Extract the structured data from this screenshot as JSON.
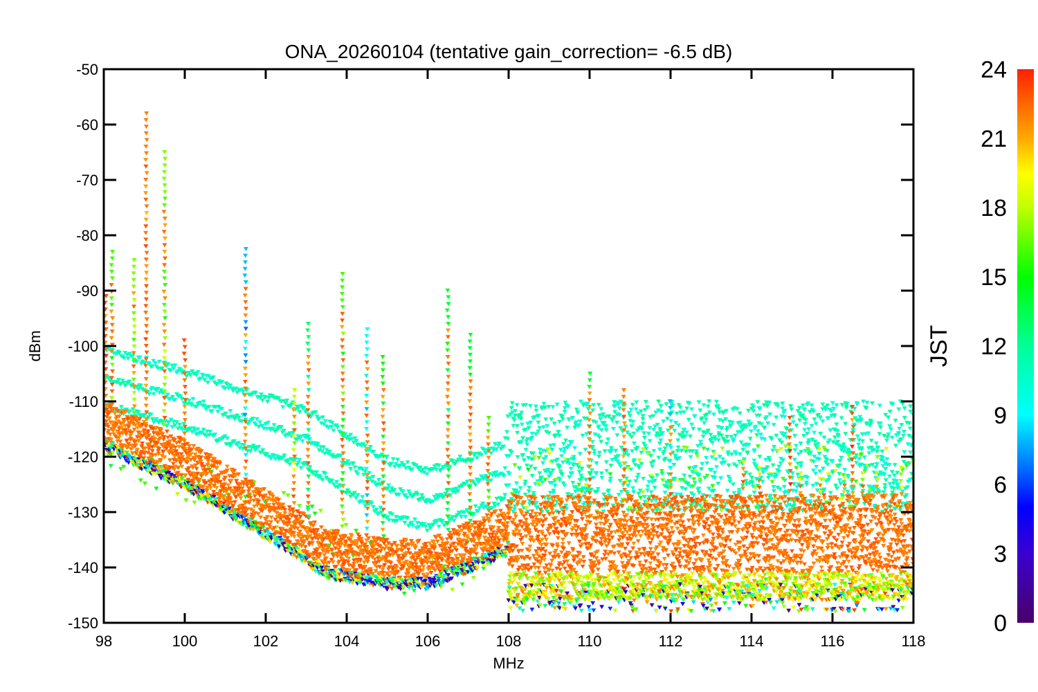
{
  "chart_data": {
    "type": "scatter",
    "title": "ONA_20260104 (tentative gain_correction= -6.5 dB)",
    "xlabel": "MHz",
    "ylabel": "dBm",
    "xlim": [
      98,
      118
    ],
    "ylim": [
      -150,
      -50
    ],
    "xticks": [
      "98",
      "100",
      "102",
      "104",
      "106",
      "108",
      "110",
      "112",
      "114",
      "116",
      "118"
    ],
    "yticks": [
      "-50",
      "-60",
      "-70",
      "-80",
      "-90",
      "-100",
      "-110",
      "-120",
      "-130",
      "-140",
      "-150"
    ],
    "grid": false,
    "marker": "down-triangle",
    "colorbar": {
      "label": "JST",
      "range": [
        0,
        24
      ],
      "ticks": [
        "0",
        "3",
        "6",
        "9",
        "12",
        "15",
        "18",
        "21",
        "24"
      ],
      "colormap": [
        {
          "v": 0,
          "c": "#4a0068"
        },
        {
          "v": 3,
          "c": "#3a00d0"
        },
        {
          "v": 5,
          "c": "#0000ff"
        },
        {
          "v": 7,
          "c": "#0080ff"
        },
        {
          "v": 9,
          "c": "#00ffff"
        },
        {
          "v": 12,
          "c": "#00ff99"
        },
        {
          "v": 15,
          "c": "#00ff00"
        },
        {
          "v": 18,
          "c": "#c0ff00"
        },
        {
          "v": 19.5,
          "c": "#ffff00"
        },
        {
          "v": 21,
          "c": "#ffaa00"
        },
        {
          "v": 22.5,
          "c": "#ff6600"
        },
        {
          "v": 24,
          "c": "#ff2000"
        }
      ]
    },
    "noise_floor_top_dBm": [
      {
        "mhz": 98,
        "dbm": -110
      },
      {
        "mhz": 100,
        "dbm": -117
      },
      {
        "mhz": 102,
        "dbm": -126
      },
      {
        "mhz": 103.5,
        "dbm": -133
      },
      {
        "mhz": 105,
        "dbm": -135
      },
      {
        "mhz": 106,
        "dbm": -135
      },
      {
        "mhz": 107,
        "dbm": -132
      },
      {
        "mhz": 107.95,
        "dbm": -129
      },
      {
        "mhz": 108,
        "dbm": -127
      },
      {
        "mhz": 118,
        "dbm": -127
      }
    ],
    "noise_floor_jst": 23,
    "daytime_band_top_dBm": [
      {
        "mhz": 98,
        "dbm": -100
      },
      {
        "mhz": 100,
        "dbm": -104
      },
      {
        "mhz": 103,
        "dbm": -111
      },
      {
        "mhz": 105,
        "dbm": -120
      },
      {
        "mhz": 106,
        "dbm": -122
      },
      {
        "mhz": 107.9,
        "dbm": -117
      },
      {
        "mhz": 108,
        "dbm": -110
      },
      {
        "mhz": 118,
        "dbm": -110
      }
    ],
    "daytime_band_jst": 11,
    "spikes": [
      {
        "mhz": 98.05,
        "top_dbm": -91,
        "jst": 23
      },
      {
        "mhz": 98.2,
        "top_dbm": -83,
        "jst": 16
      },
      {
        "mhz": 98.75,
        "top_dbm": -84.5,
        "jst": 17
      },
      {
        "mhz": 99.05,
        "top_dbm": -58,
        "jst": 22
      },
      {
        "mhz": 99.5,
        "top_dbm": -65,
        "jst": 17
      },
      {
        "mhz": 100.0,
        "top_dbm": -99,
        "jst": 23
      },
      {
        "mhz": 101.5,
        "top_dbm": -82.5,
        "jst": 8
      },
      {
        "mhz": 102.7,
        "top_dbm": -108,
        "jst": 18
      },
      {
        "mhz": 103.05,
        "top_dbm": -96,
        "jst": 13
      },
      {
        "mhz": 103.9,
        "top_dbm": -87,
        "jst": 16
      },
      {
        "mhz": 104.5,
        "top_dbm": -97,
        "jst": 9
      },
      {
        "mhz": 104.9,
        "top_dbm": -102,
        "jst": 15
      },
      {
        "mhz": 106.5,
        "top_dbm": -90,
        "jst": 14
      },
      {
        "mhz": 107.05,
        "top_dbm": -98,
        "jst": 14
      },
      {
        "mhz": 107.5,
        "top_dbm": -113,
        "jst": 16
      },
      {
        "mhz": 110.0,
        "top_dbm": -105,
        "jst": 14
      },
      {
        "mhz": 110.85,
        "top_dbm": -108,
        "jst": 22
      },
      {
        "mhz": 112.0,
        "top_dbm": -110,
        "jst": 8
      },
      {
        "mhz": 114.95,
        "top_dbm": -113,
        "jst": 23
      },
      {
        "mhz": 116.5,
        "top_dbm": -111,
        "jst": 23
      },
      {
        "mhz": 113.8,
        "top_dbm": -121,
        "jst": 19
      },
      {
        "mhz": 114.2,
        "top_dbm": -122,
        "jst": 19
      },
      {
        "mhz": 115.2,
        "top_dbm": -123,
        "jst": 19
      },
      {
        "mhz": 115.7,
        "top_dbm": -124,
        "jst": 19
      },
      {
        "mhz": 116.3,
        "top_dbm": -124,
        "jst": 19
      },
      {
        "mhz": 116.75,
        "top_dbm": -123,
        "jst": 18
      },
      {
        "mhz": 117.1,
        "top_dbm": -123,
        "jst": 18
      },
      {
        "mhz": 117.7,
        "top_dbm": -122,
        "jst": 18
      }
    ]
  }
}
